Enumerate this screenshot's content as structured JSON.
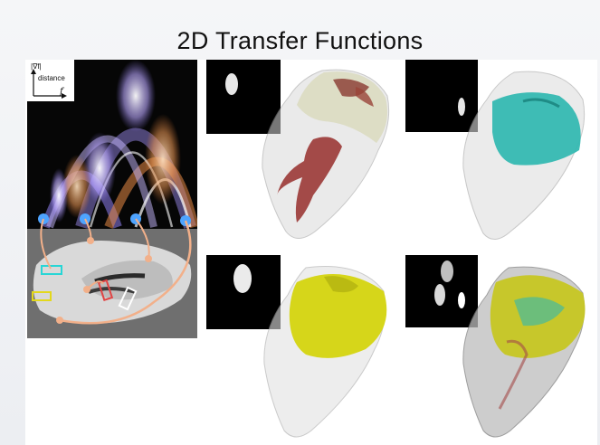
{
  "title": "2D Transfer Functions",
  "histogram_axes": {
    "gradient_label": "|∇f|",
    "distance_label": "distance",
    "value_label": "f"
  },
  "colors": {
    "bone_yellow": "#d6d61a",
    "pulp_red": "#a34a48",
    "cyan_enamel": "#2fb7b0",
    "connector": "#f2b08a"
  }
}
